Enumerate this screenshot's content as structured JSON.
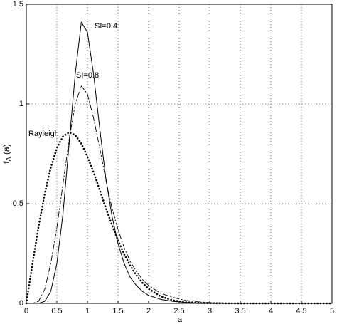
{
  "chart_data": {
    "type": "line",
    "xlabel": "a",
    "ylabel": {
      "base": "f",
      "sub": "A",
      "rest": " (a)"
    },
    "x": [
      0,
      0.1,
      0.2,
      0.3,
      0.4,
      0.5,
      0.6,
      0.7,
      0.8,
      0.9,
      1.0,
      1.1,
      1.2,
      1.3,
      1.4,
      1.5,
      1.6,
      1.7,
      1.8,
      1.9,
      2.0,
      2.2,
      2.4,
      2.6,
      2.8,
      3.0,
      3.5,
      4.0,
      4.5,
      5.0
    ],
    "series": [
      {
        "name": "SI=0.4",
        "color": "#000000",
        "style": "solid",
        "values": [
          0,
          0,
          0,
          0.01,
          0.06,
          0.2,
          0.45,
          0.8,
          1.15,
          1.41,
          1.36,
          1.15,
          0.88,
          0.63,
          0.44,
          0.3,
          0.2,
          0.13,
          0.09,
          0.06,
          0.04,
          0.02,
          0.01,
          0.005,
          0.002,
          0,
          0,
          0,
          0,
          0
        ]
      },
      {
        "name": "SI=0.8",
        "color": "#000000",
        "style": "dashdot",
        "values": [
          0,
          0,
          0.01,
          0.07,
          0.2,
          0.38,
          0.6,
          0.82,
          1.0,
          1.09,
          1.05,
          0.93,
          0.78,
          0.62,
          0.48,
          0.37,
          0.28,
          0.21,
          0.16,
          0.12,
          0.09,
          0.05,
          0.03,
          0.015,
          0.008,
          0.004,
          0,
          0,
          0,
          0
        ]
      },
      {
        "name": "Rayleigh",
        "color": "#000000",
        "style": "dotted",
        "values": [
          0,
          0.198,
          0.384,
          0.548,
          0.681,
          0.779,
          0.837,
          0.858,
          0.844,
          0.801,
          0.736,
          0.657,
          0.569,
          0.479,
          0.394,
          0.316,
          0.247,
          0.189,
          0.141,
          0.103,
          0.073,
          0.035,
          0.015,
          0.006,
          0.002,
          0.001,
          0,
          0,
          0,
          0
        ]
      }
    ],
    "xlim": [
      0,
      5
    ],
    "ylim": [
      0,
      1.5
    ],
    "xticks": [
      0,
      0.5,
      1,
      1.5,
      2,
      2.5,
      3,
      3.5,
      4,
      4.5,
      5
    ],
    "yticks": [
      0,
      0.5,
      1,
      1.5
    ],
    "grid": true
  }
}
